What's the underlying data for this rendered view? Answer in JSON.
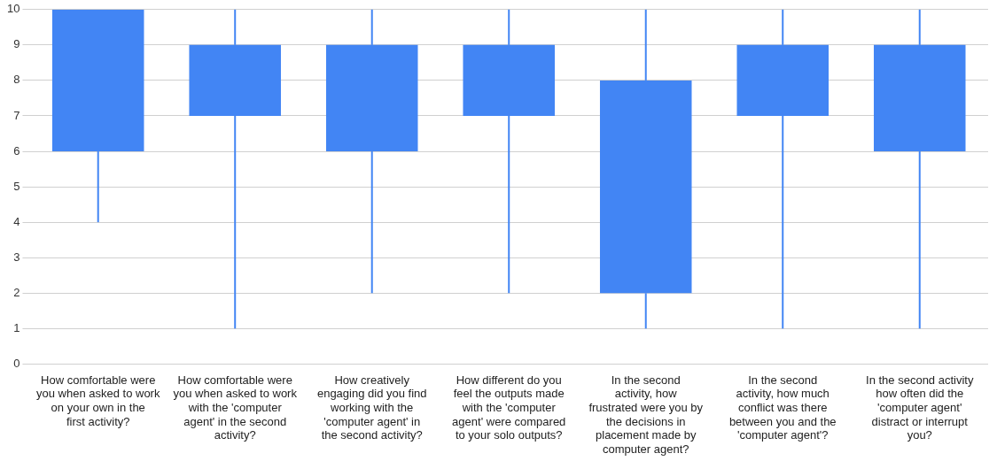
{
  "chart_data": {
    "type": "candlestick",
    "categories": [
      "How comfortable were you when asked to work on your own in the first activity?",
      "How comfortable were you when asked to work with the 'computer agent' in the second activity?",
      "How creatively engaging did you find working with the 'computer agent' in the second activity?",
      "How different do you feel the outputs made with the 'computer agent' were compared to your solo outputs?",
      "In the second activity, how frustrated were you by the decisions in placement made by computer agent?",
      "In the second activity, how much conflict was there between you and the 'computer agent'?",
      "In the second activity how often did the 'computer agent' distract or interrupt you?"
    ],
    "ohlc": [
      [
        6,
        10,
        4,
        10
      ],
      [
        7,
        10,
        1,
        9
      ],
      [
        6,
        10,
        2,
        9
      ],
      [
        7,
        10,
        2,
        9
      ],
      [
        2,
        10,
        1,
        8
      ],
      [
        7,
        10,
        1,
        9
      ],
      [
        6,
        10,
        1,
        9
      ]
    ],
    "color": "#4285f4",
    "ylim": [
      0,
      10
    ],
    "yticks": [
      0,
      1,
      2,
      3,
      4,
      5,
      6,
      7,
      8,
      9,
      10
    ],
    "grid": "y",
    "legend": false
  }
}
